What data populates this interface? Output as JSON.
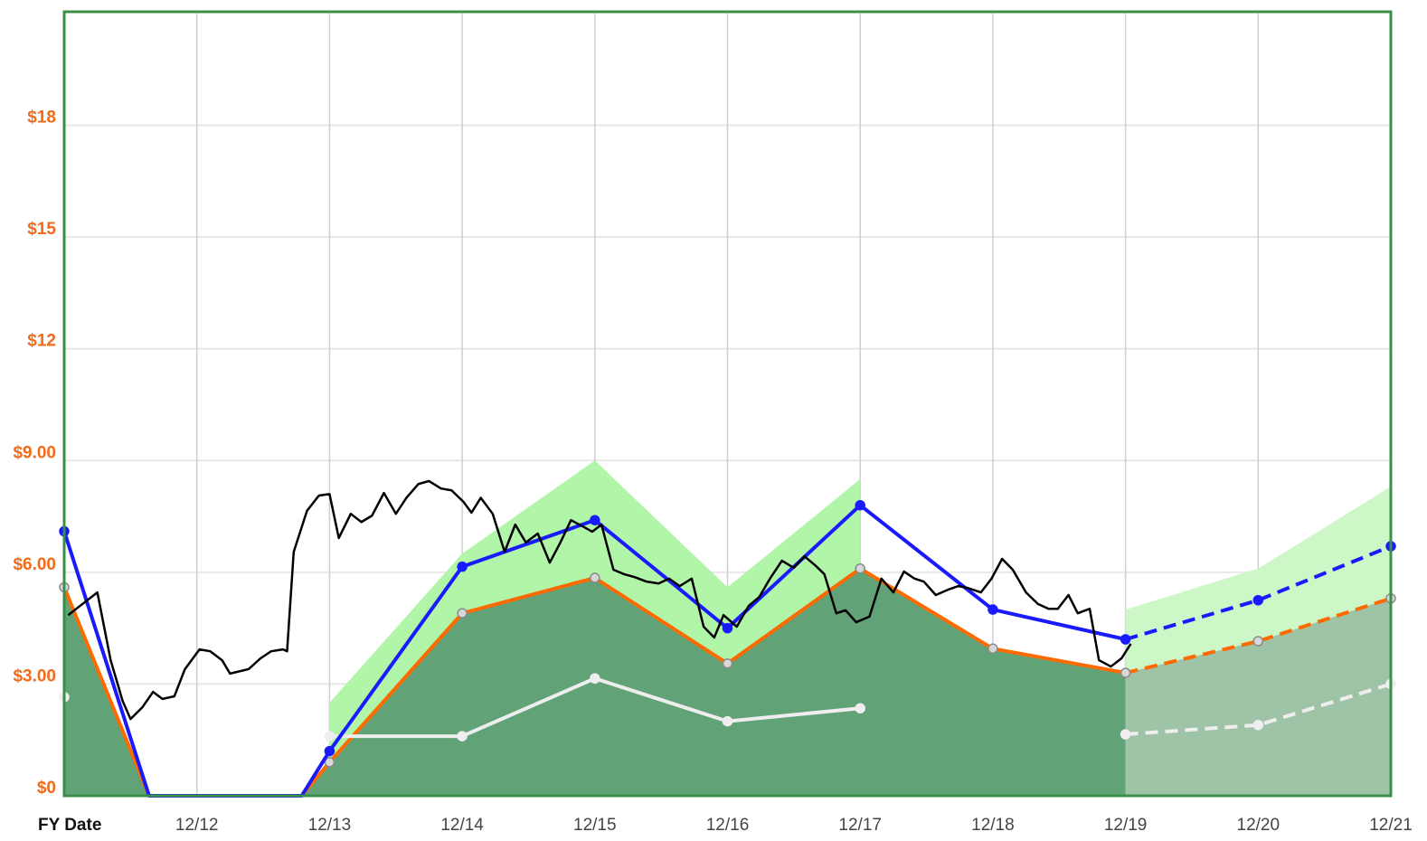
{
  "chart_data": {
    "type": "line",
    "x_label": "FY Date",
    "xlim": [
      2011,
      2021
    ],
    "ylim": [
      0,
      21
    ],
    "xticks": [
      {
        "value": 2012,
        "label": "12/12"
      },
      {
        "value": 2013,
        "label": "12/13"
      },
      {
        "value": 2014,
        "label": "12/14"
      },
      {
        "value": 2015,
        "label": "12/15"
      },
      {
        "value": 2016,
        "label": "12/16"
      },
      {
        "value": 2017,
        "label": "12/17"
      },
      {
        "value": 2018,
        "label": "12/18"
      },
      {
        "value": 2019,
        "label": "12/19"
      },
      {
        "value": 2020,
        "label": "12/20"
      },
      {
        "value": 2021,
        "label": "12/21"
      }
    ],
    "yticks": [
      {
        "value": 0,
        "label": "$0"
      },
      {
        "value": 3,
        "label": "$3.00"
      },
      {
        "value": 6,
        "label": "$6.00"
      },
      {
        "value": 9,
        "label": "$9.00"
      },
      {
        "value": 12,
        "label": "$12"
      },
      {
        "value": 15,
        "label": "$15"
      },
      {
        "value": 18,
        "label": "$18"
      }
    ],
    "grid": true,
    "forecast_from": 2019,
    "series": [
      {
        "color": "#b0f5a8",
        "fill": "#b0f5a8",
        "forecast_fill": "#cdf7c6",
        "line": false,
        "x": [
          2013,
          2014,
          2015,
          2016,
          2017,
          2018,
          2019,
          2020,
          2021
        ],
        "values": [
          2.5,
          6.5,
          9.0,
          5.6,
          8.5,
          null,
          5.0,
          6.1,
          8.3
        ]
      },
      {
        "color": "#ff6a00",
        "fill": "#62a277",
        "forecast_fill": "#9fc3a6",
        "dash_forecast": true,
        "marker": "#8a8a8a",
        "x": [
          2011,
          2011.64,
          2012.79,
          2013,
          2014,
          2015,
          2016,
          2017,
          2018,
          2019,
          2020,
          2021
        ],
        "values": [
          5.6,
          0,
          0,
          0.9,
          4.9,
          5.85,
          3.55,
          6.1,
          3.95,
          3.3,
          4.15,
          5.3
        ]
      },
      {
        "color": "#eeeeee",
        "dash_forecast": true,
        "marker": "#eeeeee",
        "x": [
          2011,
          2012,
          2013,
          2014,
          2015,
          2016,
          2017,
          2018,
          2019,
          2020,
          2021
        ],
        "values": [
          2.65,
          null,
          1.6,
          1.6,
          3.15,
          2.0,
          2.35,
          null,
          1.65,
          1.9,
          3.0
        ]
      },
      {
        "color": "#1a1aff",
        "dash_forecast": true,
        "marker": "#1a1aff",
        "x": [
          2011,
          2011.64,
          2012.79,
          2013,
          2014,
          2015,
          2016,
          2017,
          2018,
          2019,
          2020,
          2021
        ],
        "values": [
          7.1,
          0,
          0,
          1.2,
          6.15,
          7.4,
          4.5,
          7.8,
          5.0,
          4.2,
          5.25,
          6.7
        ]
      },
      {
        "color": "#000000",
        "x": [
          2011.03,
          2011.12,
          2011.25,
          2011.35,
          2011.44,
          2011.5,
          2011.59,
          2011.67,
          2011.74,
          2011.83,
          2011.91,
          2012.02,
          2012.1,
          2012.19,
          2012.25,
          2012.39,
          2012.48,
          2012.56,
          2012.65,
          2012.68,
          2012.73,
          2012.83,
          2012.92,
          2013.0,
          2013.07,
          2013.16,
          2013.24,
          2013.32,
          2013.41,
          2013.5,
          2013.58,
          2013.67,
          2013.75,
          2013.84,
          2013.92,
          2014.01,
          2014.07,
          2014.14,
          2014.23,
          2014.32,
          2014.4,
          2014.48,
          2014.57,
          2014.66,
          2014.74,
          2014.82,
          2014.91,
          2014.98,
          2015.05,
          2015.14,
          2015.22,
          2015.3,
          2015.39,
          2015.48,
          2015.56,
          2015.64,
          2015.73,
          2015.82,
          2015.9,
          2015.97,
          2016.07,
          2016.16,
          2016.24,
          2016.32,
          2016.41,
          2016.5,
          2016.58,
          2016.66,
          2016.73,
          2016.82,
          2016.89,
          2016.97,
          2017.07,
          2017.16,
          2017.25,
          2017.33,
          2017.41,
          2017.48,
          2017.57,
          2017.66,
          2017.74,
          2017.81,
          2017.91,
          2017.99,
          2018.07,
          2018.15,
          2018.25,
          2018.34,
          2018.42,
          2018.49,
          2018.57,
          2018.64,
          2018.73,
          2018.8,
          2018.89,
          2018.97,
          2019.04
        ],
        "values": [
          4.85,
          5.1,
          5.46,
          3.64,
          2.55,
          2.06,
          2.38,
          2.79,
          2.6,
          2.67,
          3.4,
          3.93,
          3.88,
          3.64,
          3.28,
          3.4,
          3.69,
          3.88,
          3.93,
          3.88,
          6.55,
          7.65,
          8.06,
          8.1,
          6.92,
          7.57,
          7.35,
          7.52,
          8.13,
          7.57,
          8.0,
          8.37,
          8.45,
          8.25,
          8.2,
          7.89,
          7.6,
          8.0,
          7.57,
          6.55,
          7.28,
          6.8,
          7.04,
          6.26,
          6.8,
          7.4,
          7.23,
          7.09,
          7.28,
          6.07,
          5.95,
          5.87,
          5.75,
          5.7,
          5.83,
          5.63,
          5.83,
          4.54,
          4.25,
          4.85,
          4.54,
          5.1,
          5.34,
          5.83,
          6.31,
          6.12,
          6.43,
          6.19,
          5.95,
          4.9,
          4.98,
          4.66,
          4.81,
          5.83,
          5.46,
          6.02,
          5.83,
          5.75,
          5.39,
          5.53,
          5.63,
          5.58,
          5.46,
          5.83,
          6.36,
          6.07,
          5.46,
          5.15,
          5.02,
          5.02,
          5.39,
          4.9,
          5.02,
          3.64,
          3.47,
          3.69,
          4.08
        ]
      }
    ]
  }
}
